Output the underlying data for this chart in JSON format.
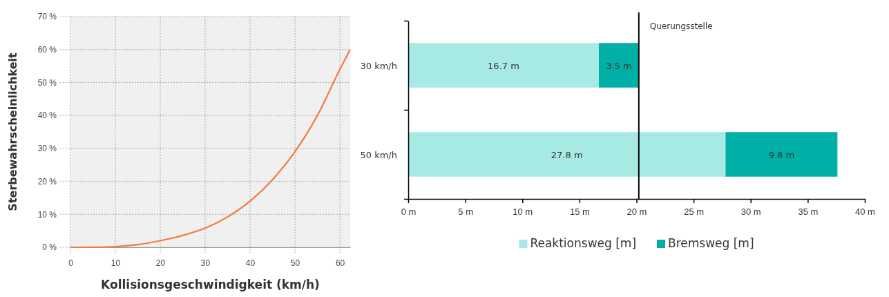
{
  "chart_data": [
    {
      "type": "line",
      "xlabel": "Kollisionsgeschwindigkeit (km/h)",
      "ylabel": "Sterbewahrscheinlichkeit",
      "x": [
        0,
        5,
        10,
        15,
        20,
        25,
        30,
        35,
        40,
        45,
        50,
        55,
        60,
        62.3
      ],
      "series": [
        {
          "color": "#f47b3a",
          "values": [
            0,
            0,
            0.2,
            0.8,
            2,
            3.6,
            5.8,
            9.2,
            14,
            20.5,
            29,
            40,
            54,
            60
          ]
        }
      ],
      "xlim": [
        0,
        62.3
      ],
      "ylim": [
        0,
        70
      ],
      "xticks": [
        0,
        10,
        20,
        30,
        40,
        50,
        60
      ],
      "yticks": [
        {
          "value": 0,
          "label": "0 %"
        },
        {
          "value": 10,
          "label": "10 %"
        },
        {
          "value": 20,
          "label": "20 %"
        },
        {
          "value": 30,
          "label": "30 %"
        },
        {
          "value": 40,
          "label": "40 %"
        },
        {
          "value": 50,
          "label": "50 %"
        },
        {
          "value": 60,
          "label": "60 %"
        },
        {
          "value": 70,
          "label": "70 %"
        }
      ],
      "grid": true,
      "line_style": "solid",
      "marker": "none"
    },
    {
      "type": "bar",
      "orientation": "horizontal",
      "stacked": true,
      "categories": [
        "30 km/h",
        "50 km/h"
      ],
      "series": [
        {
          "name": "Reaktionsweg [m]",
          "color": "#a6eae3",
          "values": [
            16.7,
            27.8
          ],
          "value_labels": [
            "16.7 m",
            "27.8 m"
          ]
        },
        {
          "name": "Bremsweg [m]",
          "color": "#00b0a6",
          "values": [
            3.5,
            9.8
          ],
          "value_labels": [
            "3.5 m",
            "9.8 m"
          ]
        }
      ],
      "xlim": [
        0,
        40
      ],
      "xticks": [
        {
          "value": 0,
          "label": "0 m"
        },
        {
          "value": 5,
          "label": "5 m"
        },
        {
          "value": 10,
          "label": "10 m"
        },
        {
          "value": 15,
          "label": "15 m"
        },
        {
          "value": 20,
          "label": "20 m"
        },
        {
          "value": 25,
          "label": "25 m"
        },
        {
          "value": 30,
          "label": "30 m"
        },
        {
          "value": 35,
          "label": "35 m"
        },
        {
          "value": 40,
          "label": "40 m"
        }
      ],
      "ref_lines": [
        {
          "axis": "x",
          "value": 20.2,
          "label": "Querungsstelle",
          "color": "#000000"
        }
      ],
      "legend": "bottom",
      "grid": false
    }
  ]
}
